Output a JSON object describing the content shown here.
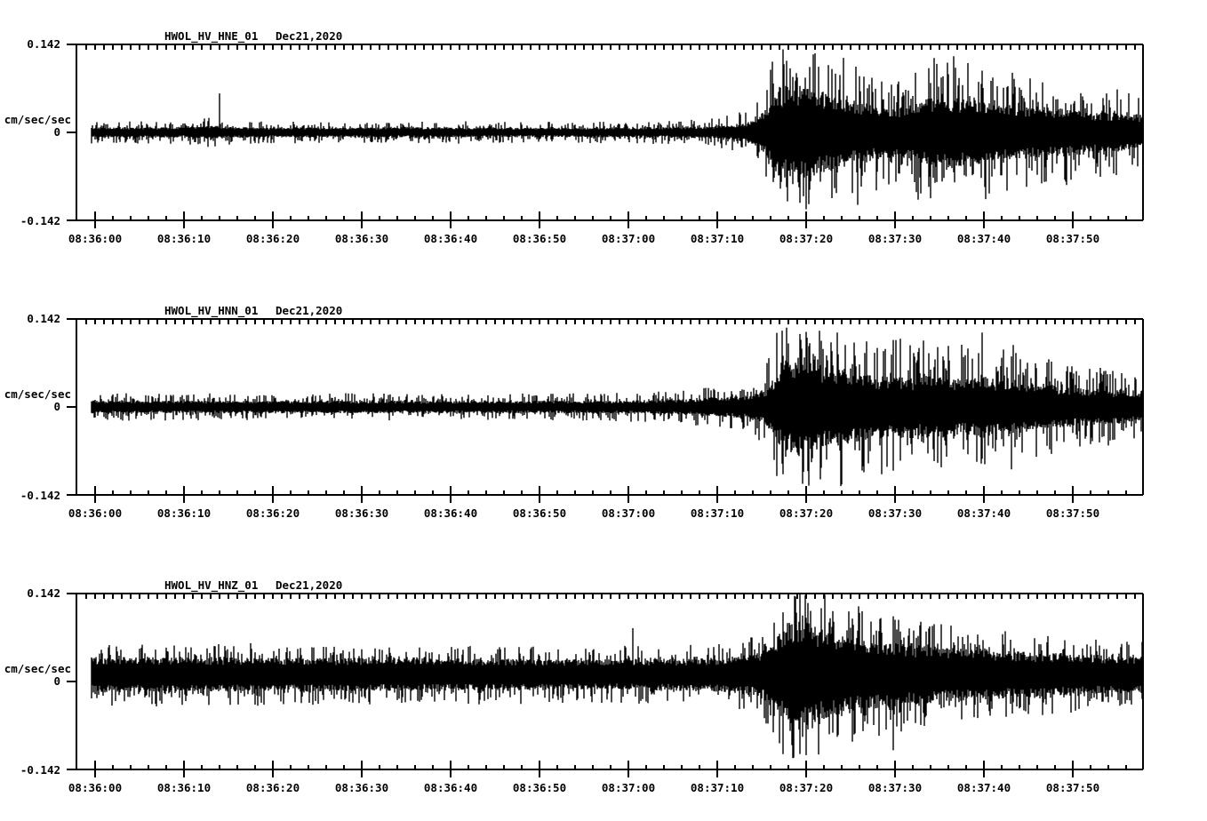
{
  "chart_data": {
    "type": "line",
    "kind": "seismogram-three-component",
    "date_label": "Dec21,2020",
    "units_label": "cm/sec/sec",
    "y_axis": {
      "max_label": "0.142",
      "zero_label": "0",
      "min_label": "-0.142",
      "max_value": 0.142,
      "min_value": -0.142
    },
    "x_axis": {
      "tick_labels": [
        "08:36:00",
        "08:36:10",
        "08:36:20",
        "08:36:30",
        "08:36:40",
        "08:36:50",
        "08:37:00",
        "08:37:10",
        "08:37:20",
        "08:37:30",
        "08:37:40",
        "08:37:50"
      ],
      "major_interval_seconds": 10,
      "minor_interval_seconds": 2,
      "start_time": "08:35:58",
      "end_time": "08:37:58"
    },
    "panels": [
      {
        "id": "HWOL_HV_HNE_01",
        "date": "Dec21,2020",
        "core_ratio": 0.5,
        "dc_offset": 0,
        "envelope": [
          [
            -0.4,
            0.013
          ],
          [
            6,
            0.013
          ],
          [
            10,
            0.0135
          ],
          [
            13,
            0.018
          ],
          [
            15,
            0.0145
          ],
          [
            18,
            0.013
          ],
          [
            28,
            0.0125
          ],
          [
            40,
            0.013
          ],
          [
            50,
            0.012
          ],
          [
            58,
            0.0125
          ],
          [
            64,
            0.0135
          ],
          [
            68,
            0.015
          ],
          [
            71,
            0.019
          ],
          [
            73,
            0.025
          ],
          [
            74.5,
            0.035
          ],
          [
            75.5,
            0.06
          ],
          [
            76.5,
            0.105
          ],
          [
            78,
            0.118
          ],
          [
            80,
            0.12
          ],
          [
            81.5,
            0.108
          ],
          [
            83,
            0.094
          ],
          [
            85,
            0.083
          ],
          [
            87,
            0.073
          ],
          [
            89,
            0.064
          ],
          [
            91,
            0.065
          ],
          [
            93,
            0.082
          ],
          [
            94.5,
            0.092
          ],
          [
            96.5,
            0.09
          ],
          [
            98,
            0.085
          ],
          [
            100,
            0.079
          ],
          [
            102,
            0.074
          ],
          [
            104,
            0.069
          ],
          [
            106,
            0.066
          ],
          [
            108,
            0.064
          ],
          [
            110,
            0.059
          ],
          [
            112,
            0.053
          ],
          [
            114,
            0.051
          ],
          [
            116,
            0.049
          ],
          [
            118,
            0.046
          ]
        ],
        "spikes": [
          {
            "t": 14,
            "amp": 0.063,
            "dir": "up"
          },
          {
            "t": 77.5,
            "amp": 0.11,
            "dir": "up"
          },
          {
            "t": 80,
            "amp": 0.124,
            "dir": "down"
          },
          {
            "t": 85.8,
            "amp": 0.117,
            "dir": "down"
          },
          {
            "t": 96.6,
            "amp": 0.123,
            "dir": "up"
          },
          {
            "t": 109.3,
            "amp": 0.085,
            "dir": "down"
          }
        ]
      },
      {
        "id": "HWOL_HV_HNN_01",
        "date": "Dec21,2020",
        "core_ratio": 0.5,
        "dc_offset": 0,
        "envelope": [
          [
            -0.4,
            0.016
          ],
          [
            8,
            0.016
          ],
          [
            18,
            0.0155
          ],
          [
            28,
            0.016
          ],
          [
            38,
            0.015
          ],
          [
            48,
            0.0155
          ],
          [
            56,
            0.016
          ],
          [
            62,
            0.0175
          ],
          [
            66,
            0.02
          ],
          [
            69,
            0.023
          ],
          [
            72,
            0.027
          ],
          [
            74,
            0.033
          ],
          [
            75.5,
            0.048
          ],
          [
            76.5,
            0.08
          ],
          [
            77.5,
            0.112
          ],
          [
            79,
            0.122
          ],
          [
            80.5,
            0.117
          ],
          [
            82,
            0.107
          ],
          [
            84,
            0.097
          ],
          [
            86,
            0.087
          ],
          [
            88,
            0.078
          ],
          [
            90,
            0.081
          ],
          [
            92,
            0.075
          ],
          [
            94,
            0.079
          ],
          [
            96,
            0.075
          ],
          [
            98,
            0.071
          ],
          [
            100,
            0.08
          ],
          [
            101.5,
            0.071
          ],
          [
            103,
            0.074
          ],
          [
            105,
            0.061
          ],
          [
            107,
            0.057
          ],
          [
            109,
            0.052
          ],
          [
            111,
            0.048
          ],
          [
            113,
            0.046
          ],
          [
            115,
            0.044
          ],
          [
            118,
            0.042
          ]
        ],
        "spikes": [
          {
            "t": 77.8,
            "amp": 0.128,
            "dir": "up"
          },
          {
            "t": 79.6,
            "amp": 0.124,
            "dir": "down"
          },
          {
            "t": 83.5,
            "amp": 0.12,
            "dir": "up"
          },
          {
            "t": 99.8,
            "amp": 0.12,
            "dir": "up"
          },
          {
            "t": 103.3,
            "amp": 0.1,
            "dir": "up"
          }
        ]
      },
      {
        "id": "HWOL_HV_HNZ_01",
        "date": "Dec21,2020",
        "core_ratio": 0.6,
        "dc_offset": 0.011,
        "envelope": [
          [
            -0.4,
            0.038
          ],
          [
            8,
            0.037
          ],
          [
            16,
            0.0365
          ],
          [
            24,
            0.036
          ],
          [
            32,
            0.035
          ],
          [
            40,
            0.0345
          ],
          [
            48,
            0.034
          ],
          [
            56,
            0.033
          ],
          [
            62,
            0.0335
          ],
          [
            68,
            0.035
          ],
          [
            71,
            0.037
          ],
          [
            73,
            0.041
          ],
          [
            75,
            0.05
          ],
          [
            76.5,
            0.075
          ],
          [
            78,
            0.115
          ],
          [
            79.5,
            0.12
          ],
          [
            81,
            0.103
          ],
          [
            83,
            0.091
          ],
          [
            85,
            0.082
          ],
          [
            87,
            0.075
          ],
          [
            89,
            0.07
          ],
          [
            91,
            0.065
          ],
          [
            94,
            0.06
          ],
          [
            97,
            0.056
          ],
          [
            100,
            0.053
          ],
          [
            103,
            0.05
          ],
          [
            106,
            0.047
          ],
          [
            109,
            0.045
          ],
          [
            112,
            0.042
          ],
          [
            115,
            0.04
          ],
          [
            118,
            0.039
          ]
        ],
        "spikes": [
          {
            "t": 60.5,
            "amp": 0.075,
            "dir": "up"
          },
          {
            "t": 78.8,
            "amp": 0.126,
            "dir": "up"
          },
          {
            "t": 79.3,
            "amp": 0.128,
            "dir": "down"
          },
          {
            "t": 89.8,
            "amp": 0.122,
            "dir": "down"
          }
        ]
      }
    ]
  }
}
